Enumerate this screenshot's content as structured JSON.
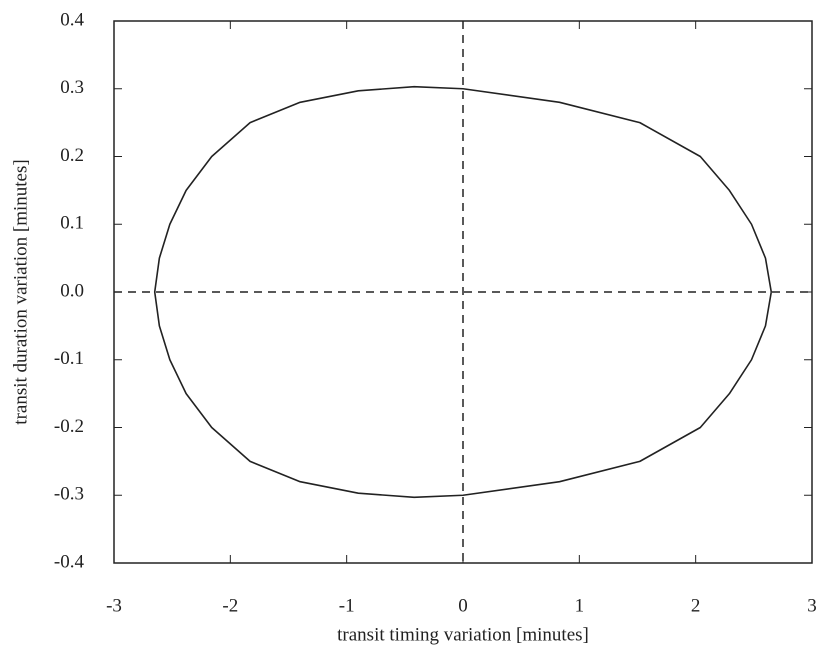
{
  "chart_data": {
    "type": "line",
    "x_label": "transit timing variation [minutes]",
    "y_label": "transit duration variation [minutes]",
    "series": [
      {
        "color": "#222222",
        "x": [
          2.65,
          2.6,
          2.48,
          2.29,
          2.04,
          1.52,
          0.83,
          0.0,
          -0.42,
          -0.9,
          -1.4,
          -1.83,
          -2.16,
          -2.38,
          -2.52,
          -2.61,
          -2.65,
          -2.61,
          -2.52,
          -2.38,
          -2.16,
          -1.83,
          -1.4,
          -0.9,
          -0.42,
          0.0,
          0.83,
          1.52,
          2.04,
          2.29,
          2.48,
          2.6,
          2.65
        ],
        "values": [
          0,
          0.05,
          0.1,
          0.15,
          0.2,
          0.25,
          0.28,
          0.3,
          0.303,
          0.297,
          0.28,
          0.25,
          0.2,
          0.15,
          0.1,
          0.05,
          0,
          -0.05,
          -0.1,
          -0.15,
          -0.2,
          -0.25,
          -0.28,
          -0.297,
          -0.303,
          -0.3,
          -0.28,
          -0.25,
          -0.2,
          -0.15,
          -0.1,
          -0.05,
          0
        ]
      }
    ],
    "xlim": [
      -3,
      3
    ],
    "xticks": [
      -3,
      -2,
      -1,
      0,
      1,
      2,
      3
    ],
    "ylim": [
      -0.4,
      0.4
    ],
    "yticks": [
      -0.4,
      -0.3,
      -0.2,
      -0.1,
      {
        "value": 0,
        "label": "0.0"
      },
      0.1,
      0.2,
      0.3,
      0.4
    ],
    "zero_lines": true,
    "grid": false
  }
}
